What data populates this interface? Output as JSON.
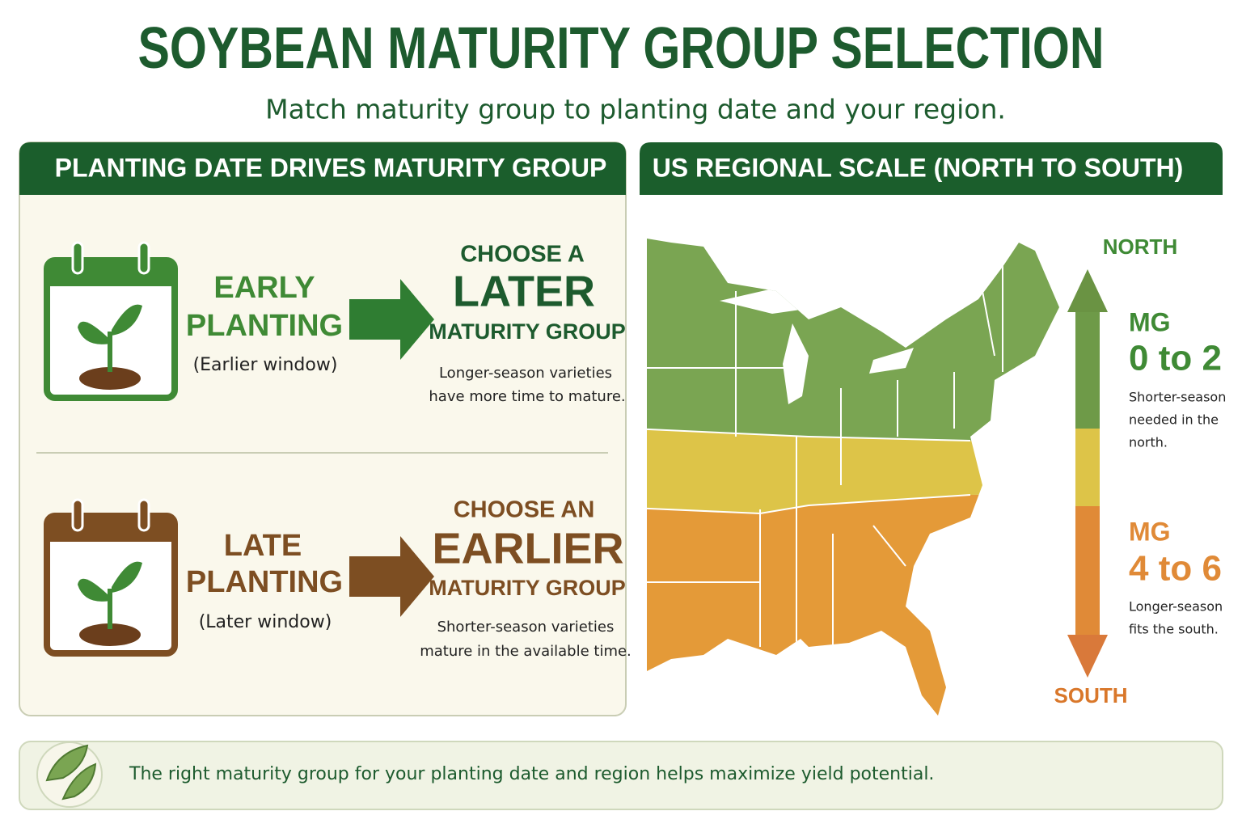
{
  "header": {
    "title": "SOYBEAN MATURITY GROUP SELECTION",
    "subtitle": "Match maturity group to planting date and your region."
  },
  "left_panel": {
    "title": "PLANTING DATE DRIVES MATURITY GROUP",
    "rows": [
      {
        "label_lines": [
          "EARLY",
          "PLANTING"
        ],
        "window": "(Earlier window)",
        "choose_lines": [
          "CHOOSE A",
          "LATER",
          "MATURITY GROUP"
        ],
        "note_lines": [
          "Longer-season varieties",
          "have more time to mature."
        ]
      },
      {
        "label_lines": [
          "LATE",
          "PLANTING"
        ],
        "window": "(Later window)",
        "choose_lines": [
          "CHOOSE AN",
          "EARLIER",
          "MATURITY GROUP"
        ],
        "note_lines": [
          "Shorter-season varieties",
          "mature in the available time."
        ]
      }
    ]
  },
  "right_panel": {
    "title": "US REGIONAL SCALE (NORTH TO SOUTH)",
    "north": "NORTH",
    "south": "SOUTH",
    "zones": [
      {
        "mg": "MG",
        "range": "0 to 2",
        "note_lines": [
          "Shorter-season",
          "needed in the",
          "north."
        ]
      },
      {
        "mg": "MG",
        "range": "4 to 6",
        "note_lines": [
          "Longer-season",
          "fits the south."
        ]
      }
    ]
  },
  "footer": {
    "text": "The right maturity group for your planting date and region helps maximize yield potential."
  }
}
